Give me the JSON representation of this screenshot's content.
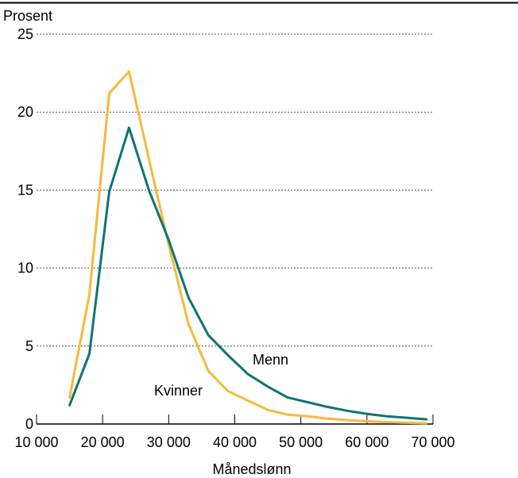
{
  "chart_data": {
    "type": "line",
    "ylabel": "Prosent",
    "xlabel": "Månedslønn",
    "xlim": [
      10000,
      70000
    ],
    "ylim": [
      0,
      25
    ],
    "grid": true,
    "x_ticks": [
      10000,
      20000,
      30000,
      40000,
      50000,
      60000,
      70000
    ],
    "x_tick_labels": [
      "10 000",
      "20 000",
      "30 000",
      "40 000",
      "50 000",
      "60 000",
      "70 000"
    ],
    "y_ticks": [
      0,
      5,
      10,
      15,
      20,
      25
    ],
    "y_tick_labels": [
      "0",
      "5",
      "10",
      "15",
      "20",
      "25"
    ],
    "series": [
      {
        "name": "Kvinner",
        "color": "#f6b93b",
        "x": [
          15000,
          18000,
          21000,
          24000,
          27000,
          30000,
          33000,
          36000,
          39000,
          42000,
          45000,
          48000,
          51000,
          54000,
          57000,
          60000,
          63000,
          66000,
          69000
        ],
        "y": [
          1.7,
          8.3,
          21.2,
          22.6,
          17.0,
          11.5,
          6.4,
          3.4,
          2.1,
          1.5,
          0.9,
          0.6,
          0.5,
          0.35,
          0.25,
          0.18,
          0.12,
          0.08,
          0.05
        ]
      },
      {
        "name": "Menn",
        "color": "#0e7470",
        "x": [
          15000,
          18000,
          21000,
          24000,
          27000,
          30000,
          33000,
          36000,
          39000,
          42000,
          45000,
          48000,
          51000,
          54000,
          57000,
          60000,
          63000,
          66000,
          69000
        ],
        "y": [
          1.2,
          4.5,
          14.9,
          19.0,
          15.0,
          11.8,
          8.1,
          5.7,
          4.4,
          3.2,
          2.4,
          1.7,
          1.4,
          1.1,
          0.85,
          0.65,
          0.5,
          0.4,
          0.3
        ]
      }
    ]
  }
}
